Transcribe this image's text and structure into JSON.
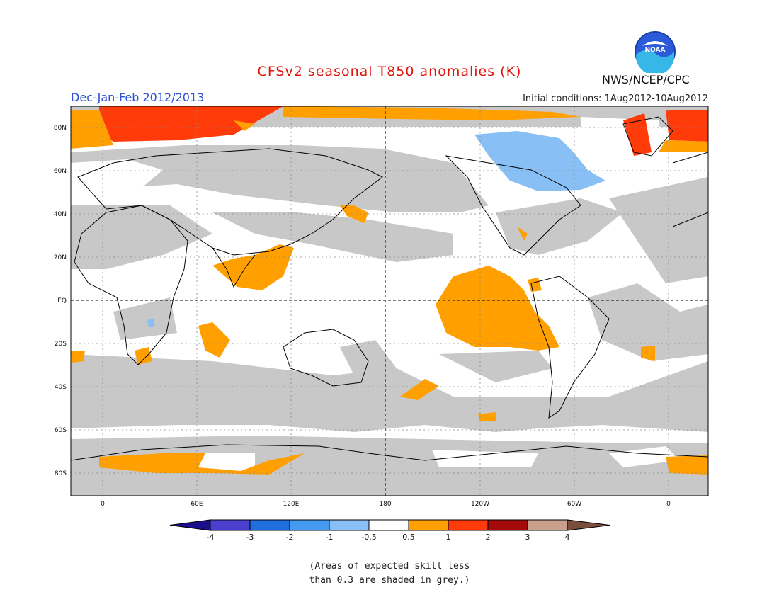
{
  "title": "CFSv2 seasonal T850 anomalies (K)",
  "season": "Dec-Jan-Feb 2012/2013",
  "initial_conditions": "Initial conditions: 1Aug2012-10Aug2012",
  "agency": "NWS/NCEP/CPC",
  "logo_text": "NOAA",
  "lat_labels": [
    "80N",
    "60N",
    "40N",
    "20N",
    "EQ",
    "20S",
    "40S",
    "60S",
    "80S"
  ],
  "lon_labels": [
    "0",
    "60E",
    "120E",
    "180",
    "120W",
    "60W",
    "0"
  ],
  "colorbar": {
    "ticks": [
      "-4",
      "-3",
      "-2",
      "-1",
      "-0.5",
      "0.5",
      "1",
      "2",
      "3",
      "4"
    ],
    "colors": [
      "#1c0f8c",
      "#4a3fcf",
      "#1f6fe0",
      "#4499f0",
      "#88bff5",
      "#ffffff",
      "#ff9f00",
      "#ff3b0a",
      "#a50a0a",
      "#c8a08c",
      "#7a4e3c"
    ]
  },
  "colors": {
    "grey_skill": "#c8c8c8",
    "warm_05_1": "#ff9f00",
    "warm_1_2": "#ff3b0a",
    "cool_05_1": "#88bff5"
  },
  "note_line1": "(Areas of expected skill less",
  "note_line2": "than 0.3 are shaded in grey.)"
}
